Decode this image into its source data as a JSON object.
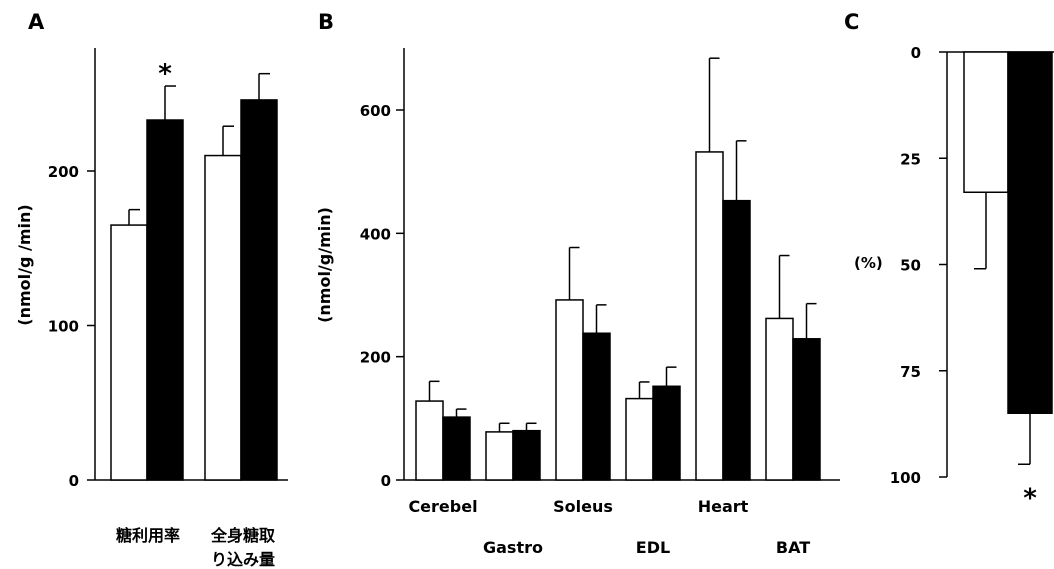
{
  "chart_data": [
    {
      "panel": "A",
      "type": "bar",
      "categories": [
        "糖利用率",
        "全身糖取り込み量"
      ],
      "category_lines": [
        [
          "糖利用率"
        ],
        [
          "全身糖取",
          "り込み量"
        ]
      ],
      "series": [
        {
          "fill": "#ffffff",
          "values": [
            165,
            210
          ],
          "errors": [
            10,
            19
          ]
        },
        {
          "fill": "#000000",
          "values": [
            233,
            246
          ],
          "errors": [
            22,
            17
          ]
        }
      ],
      "ylabel": "(nmol/g /min)",
      "ylim": [
        0,
        280
      ],
      "yticks": [
        0,
        100,
        200
      ],
      "annotations": [
        {
          "text": "*",
          "category": 0,
          "series": 1
        }
      ]
    },
    {
      "panel": "B",
      "type": "bar",
      "categories": [
        "Cerebel",
        "Gastro",
        "Soleus",
        "EDL",
        "Heart",
        "BAT"
      ],
      "category_rows": [
        0,
        1,
        0,
        1,
        0,
        1
      ],
      "series": [
        {
          "fill": "#ffffff",
          "values": [
            128,
            78,
            292,
            132,
            532,
            262
          ],
          "errors": [
            32,
            14,
            85,
            27,
            152,
            102
          ]
        },
        {
          "fill": "#000000",
          "values": [
            102,
            80,
            238,
            152,
            453,
            229
          ],
          "errors": [
            13,
            12,
            46,
            31,
            97,
            57
          ]
        }
      ],
      "ylabel": "(nmol/g/min)",
      "ylim": [
        0,
        700
      ],
      "yticks": [
        0,
        200,
        400,
        600
      ]
    },
    {
      "panel": "C",
      "type": "bar",
      "orientation": "downward",
      "series": [
        {
          "fill": "#ffffff",
          "values": [
            33
          ],
          "errors": [
            18
          ]
        },
        {
          "fill": "#000000",
          "values": [
            85
          ],
          "errors": [
            12
          ]
        }
      ],
      "ylabel": "(%)",
      "ylim": [
        0,
        100
      ],
      "yticks": [
        0,
        25,
        50,
        75,
        100
      ],
      "annotations": [
        {
          "text": "*",
          "category": 0,
          "series": 1
        }
      ]
    }
  ]
}
